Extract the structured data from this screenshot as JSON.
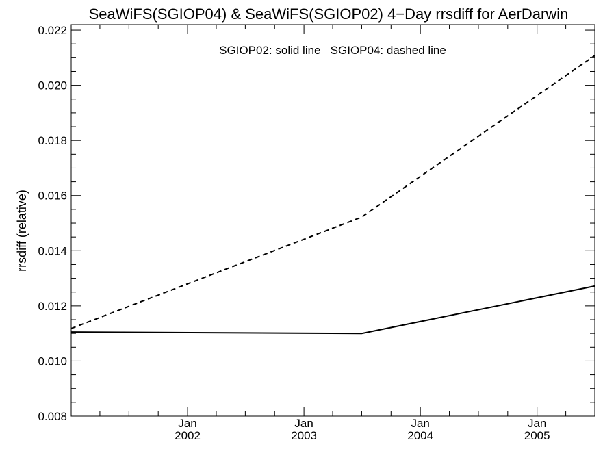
{
  "chart_data": {
    "type": "line",
    "title": "SeaWiFS(SGIOP04) & SeaWiFS(SGIOP02) 4−Day rrsdiff for AerDarwin",
    "ylabel": "rrsdiff (relative)",
    "xlabel": "",
    "legend_text": "SGIOP02: solid line   SGIOP04: dashed line",
    "legend_placement": "top-center",
    "grid": false,
    "xlim": [
      "2001-01-01",
      "2005-07-01"
    ],
    "ylim": [
      0.008,
      0.0222
    ],
    "yticks": [
      "0.008",
      "0.010",
      "0.012",
      "0.014",
      "0.016",
      "0.018",
      "0.020",
      "0.022"
    ],
    "xticks": [
      {
        "x": "2002-01-01",
        "month": "Jan",
        "year": "2002"
      },
      {
        "x": "2003-01-01",
        "month": "Jan",
        "year": "2003"
      },
      {
        "x": "2004-01-01",
        "month": "Jan",
        "year": "2004"
      },
      {
        "x": "2005-01-01",
        "month": "Jan",
        "year": "2005"
      }
    ],
    "series": [
      {
        "style": "solid",
        "points": [
          {
            "x": "2001-01-01",
            "y": 0.01105
          },
          {
            "x": "2003-07-01",
            "y": 0.011
          },
          {
            "x": "2005-07-01",
            "y": 0.01272
          }
        ]
      },
      {
        "style": "dashed",
        "points": [
          {
            "x": "2001-01-01",
            "y": 0.01118
          },
          {
            "x": "2003-07-01",
            "y": 0.01522
          },
          {
            "x": "2005-07-01",
            "y": 0.02108
          }
        ]
      }
    ]
  }
}
